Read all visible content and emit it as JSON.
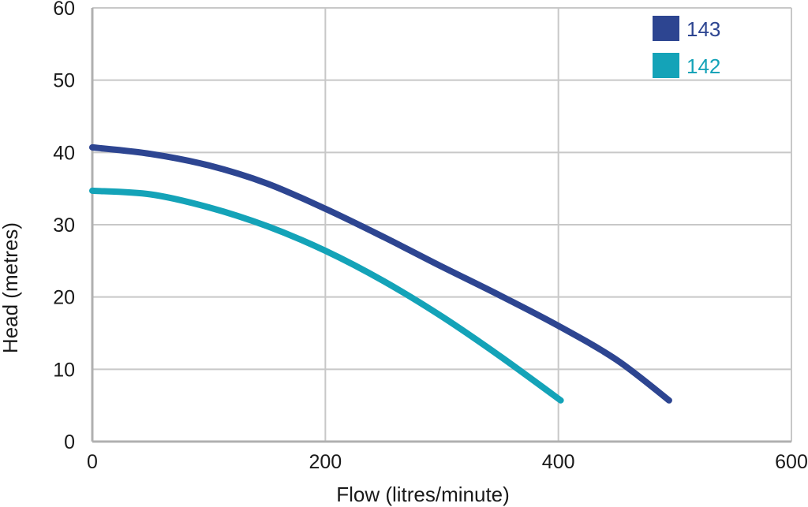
{
  "chart_data": {
    "type": "line",
    "title": "",
    "xlabel": "Flow (litres/minute)",
    "ylabel": "Head (metres)",
    "xlim": [
      0,
      600
    ],
    "ylim": [
      0,
      60
    ],
    "xticks": [
      "0",
      "200",
      "400",
      "600"
    ],
    "yticks": [
      "0",
      "10",
      "20",
      "30",
      "40",
      "50",
      "60"
    ],
    "grid": true,
    "legend_position": "top-right",
    "series": [
      {
        "name": "143",
        "color": "#2d4591",
        "points": [
          [
            0,
            40.7
          ],
          [
            50,
            39.8
          ],
          [
            100,
            38.2
          ],
          [
            150,
            35.7
          ],
          [
            200,
            32.2
          ],
          [
            250,
            28.3
          ],
          [
            300,
            24.2
          ],
          [
            350,
            20.2
          ],
          [
            400,
            16.0
          ],
          [
            450,
            11.3
          ],
          [
            495,
            5.7
          ]
        ]
      },
      {
        "name": "142",
        "color": "#14a3b8",
        "points": [
          [
            0,
            34.7
          ],
          [
            50,
            34.2
          ],
          [
            100,
            32.4
          ],
          [
            150,
            29.8
          ],
          [
            200,
            26.4
          ],
          [
            250,
            22.2
          ],
          [
            300,
            17.3
          ],
          [
            350,
            11.8
          ],
          [
            402,
            5.7
          ]
        ]
      }
    ]
  }
}
